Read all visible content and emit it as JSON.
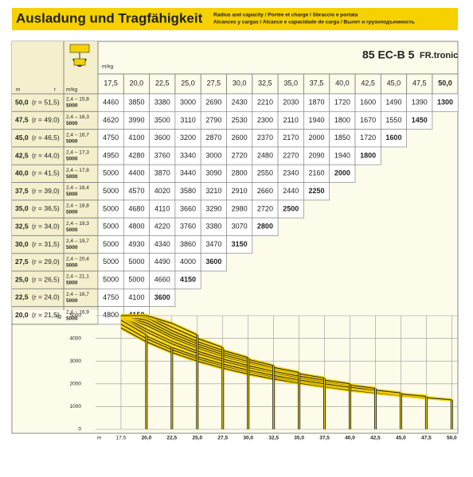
{
  "header": {
    "title": "Ausladung und Tragfähigkeit",
    "subtitle": [
      "Radius and capacity / Portée et charge / Sbraccio e portata",
      "Alcances y cargas / Alcance e capacidade de carga / Вылет и грузоподъемность"
    ]
  },
  "table": {
    "model": "85 EC-B 5",
    "model_suffix": "FR.tronic",
    "unit_label": "m/kg",
    "radius_label": "m",
    "r_label": "r",
    "hook_label": "m/kg",
    "columns": [
      {
        "value": 17.5,
        "label": "17,5"
      },
      {
        "value": 20,
        "label": "20,0"
      },
      {
        "value": 22.5,
        "label": "22,5"
      },
      {
        "value": 25,
        "label": "25,0"
      },
      {
        "value": 27.5,
        "label": "27,5"
      },
      {
        "value": 30,
        "label": "30,0"
      },
      {
        "value": 32.5,
        "label": "32,5"
      },
      {
        "value": 35,
        "label": "35,0"
      },
      {
        "value": 37.5,
        "label": "37,5"
      },
      {
        "value": 40,
        "label": "40,0"
      },
      {
        "value": 42.5,
        "label": "42,5"
      },
      {
        "value": 45,
        "label": "45,0"
      },
      {
        "value": 47.5,
        "label": "47,5"
      },
      {
        "value": 50,
        "label": "50,0"
      }
    ],
    "rows": [
      {
        "label": "50,0",
        "r": "(r = 51,5)",
        "range": "2,4 – 15,8",
        "max_load": 5000,
        "values": [
          4460,
          3850,
          3380,
          3000,
          2690,
          2430,
          2210,
          2030,
          1870,
          1720,
          1600,
          1490,
          1390,
          1300
        ]
      },
      {
        "label": "47,5",
        "r": "(r = 49,0)",
        "range": "2,4 – 16,3",
        "max_load": 5000,
        "values": [
          4620,
          3990,
          3500,
          3110,
          2790,
          2530,
          2300,
          2110,
          1940,
          1800,
          1670,
          1550,
          1450
        ]
      },
      {
        "label": "45,0",
        "r": "(r = 46,5)",
        "range": "2,4 – 16,7",
        "max_load": 5000,
        "values": [
          4750,
          4100,
          3600,
          3200,
          2870,
          2600,
          2370,
          2170,
          2000,
          1850,
          1720,
          1600
        ]
      },
      {
        "label": "42,5",
        "r": "(r = 44,0)",
        "range": "2,4 – 17,3",
        "max_load": 5000,
        "values": [
          4950,
          4280,
          3760,
          3340,
          3000,
          2720,
          2480,
          2270,
          2090,
          1940,
          1800
        ]
      },
      {
        "label": "40,0",
        "r": "(r = 41,5)",
        "range": "2,4 – 17,8",
        "max_load": 5000,
        "values": [
          5000,
          4400,
          3870,
          3440,
          3090,
          2800,
          2550,
          2340,
          2160,
          2000
        ]
      },
      {
        "label": "37,5",
        "r": "(r = 39,0)",
        "range": "2,4 – 18,4",
        "max_load": 5000,
        "values": [
          5000,
          4570,
          4020,
          3580,
          3210,
          2910,
          2660,
          2440,
          2250
        ]
      },
      {
        "label": "35,0",
        "r": "(r = 36,5)",
        "range": "2,4 – 18,8",
        "max_load": 5000,
        "values": [
          5000,
          4680,
          4110,
          3660,
          3290,
          2980,
          2720,
          2500
        ]
      },
      {
        "label": "32,5",
        "r": "(r = 34,0)",
        "range": "2,4 – 19,3",
        "max_load": 5000,
        "values": [
          5000,
          4800,
          4220,
          3760,
          3380,
          3070,
          2800
        ]
      },
      {
        "label": "30,0",
        "r": "(r = 31,5)",
        "range": "2,4 – 19,7",
        "max_load": 5000,
        "values": [
          5000,
          4930,
          4340,
          3860,
          3470,
          3150
        ]
      },
      {
        "label": "27,5",
        "r": "(r = 29,0)",
        "range": "2,4 – 20,4",
        "max_load": 5000,
        "values": [
          5000,
          5000,
          4490,
          4000,
          3600
        ]
      },
      {
        "label": "25,0",
        "r": "(r = 26,5)",
        "range": "2,4 – 21,1",
        "max_load": 5000,
        "values": [
          5000,
          5000,
          4660,
          4150
        ]
      },
      {
        "label": "22,5",
        "r": "(r = 24,0)",
        "range": "2,4 – 16,7",
        "max_load": 5000,
        "values": [
          4750,
          4100,
          3600
        ]
      },
      {
        "label": "20,0",
        "r": "(r = 21,5)",
        "range": "2,4 – 16,9",
        "max_load": 5000,
        "values": [
          4800,
          4150
        ]
      }
    ]
  },
  "load_chart": {
    "y_label": "kg",
    "x_label": "m",
    "ylim": [
      0,
      5000
    ],
    "yticks": [
      0,
      1000,
      2000,
      3000,
      4000,
      5000
    ],
    "xlim": [
      15,
      50.6
    ]
  }
}
